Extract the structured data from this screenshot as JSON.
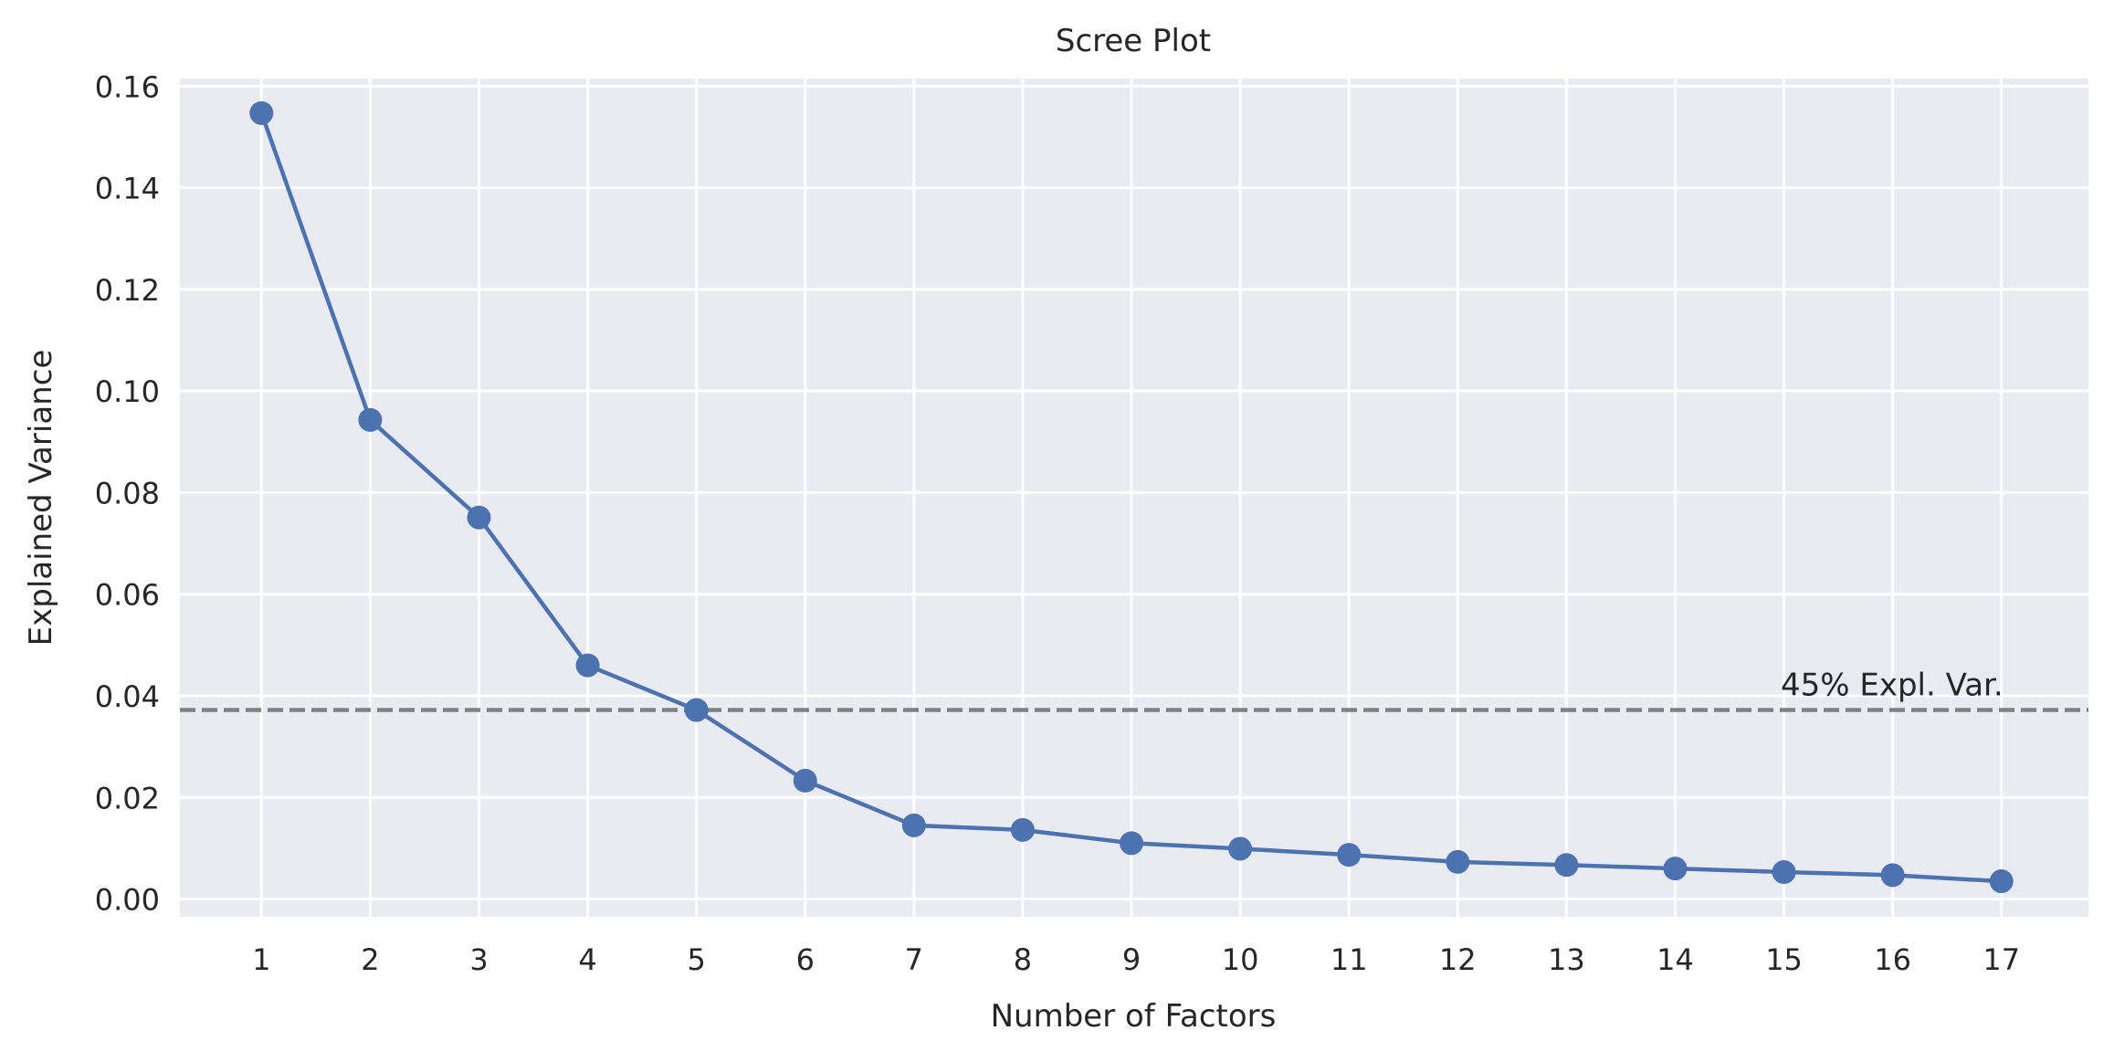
{
  "chart_data": {
    "type": "line",
    "title": "Scree Plot",
    "xlabel": "Number of Factors",
    "ylabel": "Explained Variance",
    "x": [
      1,
      2,
      3,
      4,
      5,
      6,
      7,
      8,
      9,
      10,
      11,
      12,
      13,
      14,
      15,
      16,
      17
    ],
    "series": [
      {
        "values": [
          0.1547,
          0.0943,
          0.0751,
          0.046,
          0.0372,
          0.0233,
          0.0145,
          0.0136,
          0.011,
          0.0099,
          0.0087,
          0.0073,
          0.0067,
          0.006,
          0.0053,
          0.0047,
          0.0035
        ],
        "color": "#4c72b0"
      }
    ],
    "xticks": [
      "1",
      "2",
      "3",
      "4",
      "5",
      "6",
      "7",
      "8",
      "9",
      "10",
      "11",
      "12",
      "13",
      "14",
      "15",
      "16",
      "17"
    ],
    "yticks": [
      "0.00",
      "0.02",
      "0.04",
      "0.06",
      "0.08",
      "0.10",
      "0.12",
      "0.14",
      "0.16"
    ],
    "xlim": [
      0.25,
      17.8
    ],
    "ylim": [
      -0.0035,
      0.1615
    ],
    "grid": true,
    "background": "#eaeaf2",
    "reference_line": {
      "y": 0.0372,
      "label": "45% Expl. Var.",
      "color": "#808080",
      "style": "dashed"
    }
  }
}
